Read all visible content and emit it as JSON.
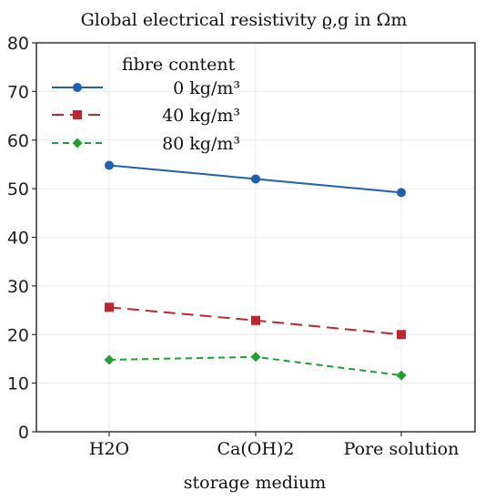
{
  "chart_data": {
    "type": "line",
    "title": "Global electrical resistivity ϱ,g in Ωm",
    "xlabel": "storage medium",
    "ylabel": "",
    "categories": [
      "H2O",
      "Ca(OH)2",
      "Pore solution"
    ],
    "ylim": [
      0,
      80
    ],
    "yticks": [
      0,
      10,
      20,
      30,
      40,
      50,
      60,
      70,
      80
    ],
    "grid": true,
    "legend": {
      "title": "fibre content",
      "placement": "top-left"
    },
    "series": [
      {
        "name": "0 kg/m³",
        "values": [
          54.8,
          52.0,
          49.2
        ],
        "color": "#1f5fb4",
        "marker": "circle",
        "line_style": "solid"
      },
      {
        "name": "40 kg/m³",
        "values": [
          25.6,
          22.9,
          20.0
        ],
        "color": "#c0262d",
        "marker": "square",
        "line_style": "dashed"
      },
      {
        "name": "80 kg/m³",
        "values": [
          14.8,
          15.4,
          11.6
        ],
        "color": "#1fa030",
        "marker": "diamond",
        "line_style": "dotted"
      }
    ]
  }
}
